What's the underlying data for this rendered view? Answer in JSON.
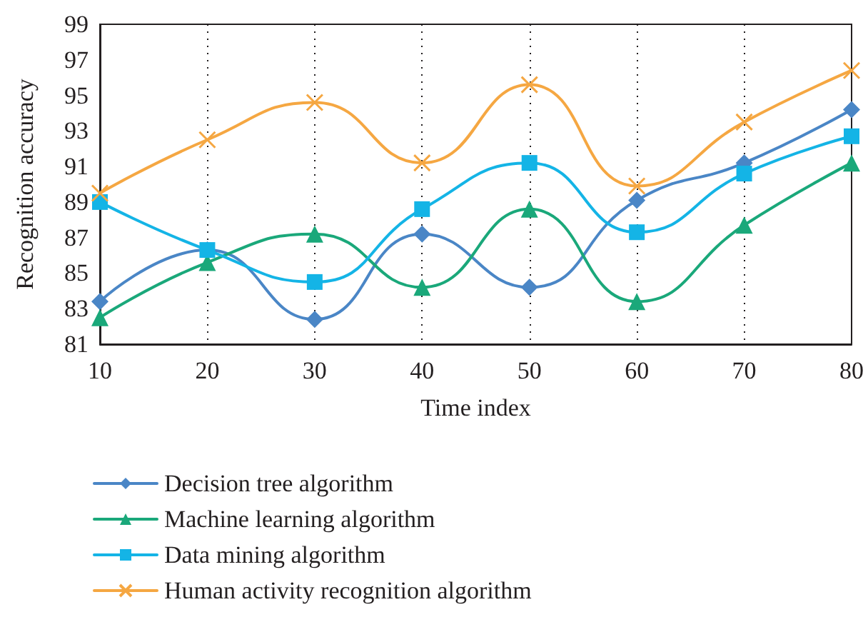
{
  "chart_data": {
    "type": "line",
    "xlabel": "Time index",
    "ylabel": "Recognition accuracy",
    "x": [
      10,
      20,
      30,
      40,
      50,
      60,
      70,
      80
    ],
    "series": [
      {
        "name": "Decision tree algorithm",
        "color": "#4a86c6",
        "marker": "diamond",
        "values": [
          83.4,
          86.3,
          82.4,
          87.2,
          84.2,
          89.1,
          91.2,
          94.2
        ]
      },
      {
        "name": "Machine learning algorithm",
        "color": "#1aa87a",
        "marker": "triangle",
        "values": [
          82.5,
          85.6,
          87.2,
          84.2,
          88.6,
          83.4,
          87.7,
          91.2
        ]
      },
      {
        "name": "Data mining algorithm",
        "color": "#14b4e6",
        "marker": "square",
        "values": [
          89.0,
          86.3,
          84.5,
          88.6,
          91.2,
          87.3,
          90.6,
          92.7
        ]
      },
      {
        "name": "Human activity recognition algorithm",
        "color": "#f5a742",
        "marker": "cross",
        "values": [
          89.5,
          92.5,
          94.6,
          91.2,
          95.6,
          89.9,
          93.5,
          96.4
        ]
      }
    ],
    "xlim": [
      10,
      80
    ],
    "xticks": [
      10,
      20,
      30,
      40,
      50,
      60,
      70,
      80
    ],
    "ylim": [
      81,
      99
    ],
    "yticks": [
      81,
      83,
      85,
      87,
      89,
      91,
      93,
      95,
      97,
      99
    ],
    "grid": "x",
    "legend": "bottom"
  }
}
